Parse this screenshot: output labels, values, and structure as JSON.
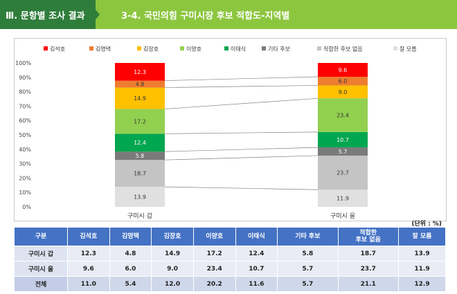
{
  "header": {
    "section": "Ⅲ. 문항별 조사 결과",
    "title": "3-4. 국민의힘 구미시장 후보 적합도-지역별"
  },
  "colors": {
    "header_dark": "#2f7d3a",
    "header_light": "#8cc63f",
    "table_header": "#4472c4"
  },
  "chart_data": {
    "type": "bar",
    "stacked": true,
    "categories": [
      "구미시 갑",
      "구미시 을"
    ],
    "series": [
      {
        "name": "잘 모름",
        "color": "#e0e0e0",
        "label_color": "#333333",
        "values": [
          13.9,
          11.9
        ]
      },
      {
        "name": "적합한 후보 없음",
        "color": "#c4c4c4",
        "label_color": "#333333",
        "values": [
          18.7,
          23.7
        ]
      },
      {
        "name": "기타 후보",
        "color": "#7a7a7a",
        "label_color": "#ffffff",
        "values": [
          5.8,
          5.7
        ]
      },
      {
        "name": "이태식",
        "color": "#00a650",
        "label_color": "#ffffff",
        "values": [
          12.4,
          10.7
        ]
      },
      {
        "name": "이양호",
        "color": "#92d050",
        "label_color": "#333333",
        "values": [
          17.2,
          23.4
        ]
      },
      {
        "name": "김장호",
        "color": "#ffc000",
        "label_color": "#333333",
        "values": [
          14.9,
          9.0
        ]
      },
      {
        "name": "김영택",
        "color": "#ed7d31",
        "label_color": "#333333",
        "values": [
          4.8,
          6.0
        ]
      },
      {
        "name": "김석호",
        "color": "#ff0000",
        "label_color": "#ffffff",
        "values": [
          12.3,
          9.6
        ]
      }
    ],
    "legend_order": [
      "김석호",
      "김영택",
      "김장호",
      "이양호",
      "이태식",
      "기타 후보",
      "적합한 후보 없음",
      "잘 모름"
    ],
    "yticks": [
      "0%",
      "10%",
      "20%",
      "30%",
      "40%",
      "50%",
      "60%",
      "70%",
      "80%",
      "90%",
      "100%"
    ],
    "ylim": [
      0,
      100
    ],
    "legend_position": "top",
    "grid": false
  },
  "table": {
    "unit": "(단위 : %)",
    "headers": [
      "구분",
      "김석호",
      "김영택",
      "김장호",
      "이양호",
      "이태식",
      "기타 후보",
      "적합한\n후보 없음",
      "잘 모름"
    ],
    "rows": [
      [
        "구미시 갑",
        "12.3",
        "4.8",
        "14.9",
        "17.2",
        "12.4",
        "5.8",
        "18.7",
        "13.9"
      ],
      [
        "구미시 을",
        "9.6",
        "6.0",
        "9.0",
        "23.4",
        "10.7",
        "5.7",
        "23.7",
        "11.9"
      ],
      [
        "전체",
        "11.0",
        "5.4",
        "12.0",
        "20.2",
        "11.6",
        "5.7",
        "21.1",
        "12.9"
      ]
    ]
  }
}
